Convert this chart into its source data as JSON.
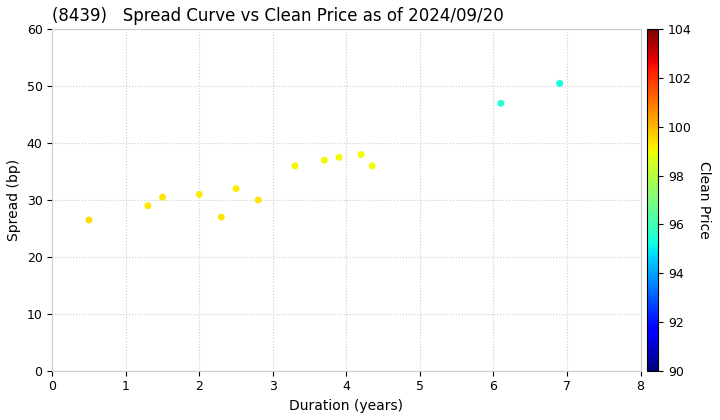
{
  "title": "(8439)   Spread Curve vs Clean Price as of 2024/09/20",
  "xlabel": "Duration (years)",
  "ylabel": "Spread (bp)",
  "colorbar_label": "Clean Price",
  "xlim": [
    0,
    8
  ],
  "ylim": [
    0,
    60
  ],
  "xticks": [
    0,
    1,
    2,
    3,
    4,
    5,
    6,
    7,
    8
  ],
  "yticks": [
    0,
    10,
    20,
    30,
    40,
    50,
    60
  ],
  "colorbar_min": 90,
  "colorbar_max": 104,
  "colorbar_ticks": [
    90,
    92,
    94,
    96,
    98,
    100,
    102,
    104
  ],
  "points": [
    {
      "duration": 0.5,
      "spread": 26.5,
      "price": 99.5
    },
    {
      "duration": 1.3,
      "spread": 29.0,
      "price": 99.3
    },
    {
      "duration": 1.5,
      "spread": 30.5,
      "price": 99.3
    },
    {
      "duration": 2.0,
      "spread": 31.0,
      "price": 99.2
    },
    {
      "duration": 2.3,
      "spread": 27.0,
      "price": 99.3
    },
    {
      "duration": 2.5,
      "spread": 32.0,
      "price": 99.2
    },
    {
      "duration": 2.8,
      "spread": 30.0,
      "price": 99.3
    },
    {
      "duration": 3.3,
      "spread": 36.0,
      "price": 99.1
    },
    {
      "duration": 3.7,
      "spread": 37.0,
      "price": 99.1
    },
    {
      "duration": 3.9,
      "spread": 37.5,
      "price": 99.0
    },
    {
      "duration": 4.2,
      "spread": 38.0,
      "price": 99.0
    },
    {
      "duration": 4.35,
      "spread": 36.0,
      "price": 99.0
    },
    {
      "duration": 6.1,
      "spread": 47.0,
      "price": 95.5
    },
    {
      "duration": 6.9,
      "spread": 50.5,
      "price": 95.2
    }
  ],
  "background_color": "#ffffff",
  "grid_color": "#cccccc",
  "marker_size": 25,
  "title_fontsize": 12,
  "axis_label_fontsize": 10,
  "tick_fontsize": 9,
  "colorbar_fontsize": 10
}
